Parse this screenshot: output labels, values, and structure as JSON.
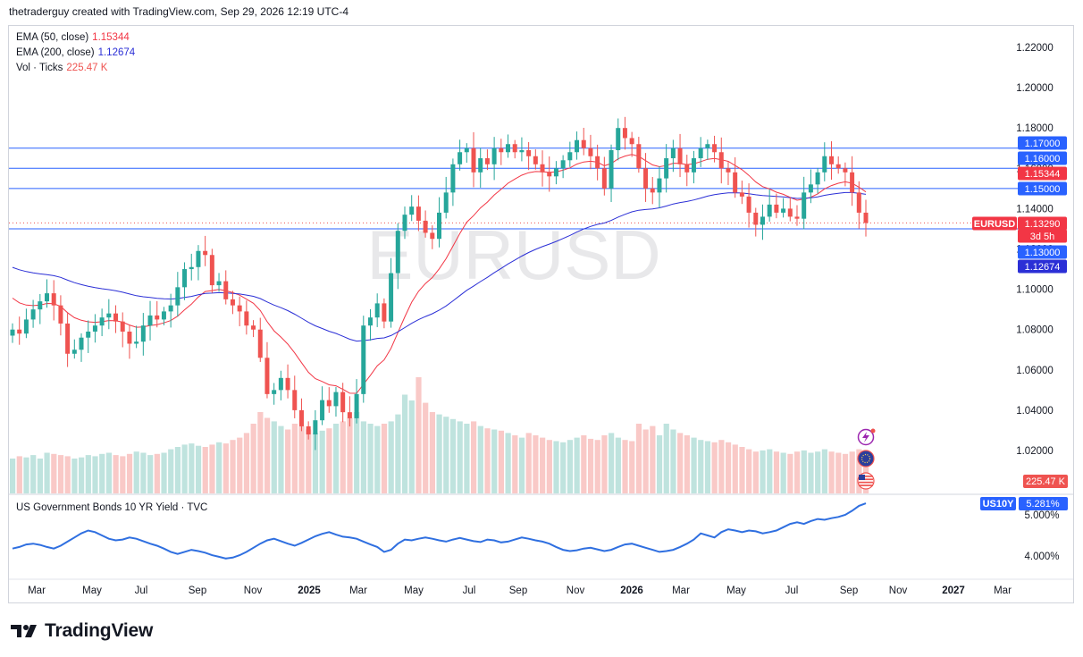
{
  "header": {
    "credit": "thetraderguy created with TradingView.com, Sep 29, 2026 12:19 UTC-4"
  },
  "legend": {
    "ema50_label": "EMA (50, close)",
    "ema50_value": "1.15344",
    "ema200_label": "EMA (200, close)",
    "ema200_value": "1.12674",
    "vol_label": "Vol · Ticks",
    "vol_value": "225.47 K"
  },
  "watermark": "EURUSD",
  "lower_pane": {
    "title": "US Government Bonds 10 YR Yield · TVC"
  },
  "brand": {
    "name": "TradingView"
  },
  "colors": {
    "up": "#26a69a",
    "down": "#ef5350",
    "ema50": "#f23645",
    "ema200": "#2b2fd6",
    "hline": "#2962ff",
    "yield": "#2f6fe0"
  },
  "chart_data": [
    {
      "type": "candlestick",
      "symbol": "EURUSD",
      "timeframe": "weekly",
      "ylim": [
        1.0,
        1.23
      ],
      "y_ticks": [
        "1.02000",
        "1.04000",
        "1.06000",
        "1.08000",
        "1.10000",
        "1.12000",
        "1.14000",
        "1.16000",
        "1.18000",
        "1.20000",
        "1.22000"
      ],
      "x_ticks": [
        "Mar",
        "May",
        "Jul",
        "Sep",
        "Nov",
        "2025",
        "Mar",
        "May",
        "Jul",
        "Sep",
        "Nov",
        "2026",
        "Mar",
        "May",
        "Jul",
        "Sep",
        "Nov",
        "2027",
        "Mar"
      ],
      "horizontal_lines": [
        1.17,
        1.16,
        1.15,
        1.13
      ],
      "price_tags": [
        {
          "text": "1.17000",
          "kind": "line"
        },
        {
          "text": "1.16000",
          "kind": "line"
        },
        {
          "text": "1.15344",
          "kind": "ema50"
        },
        {
          "text": "1.15000",
          "kind": "line"
        },
        {
          "text": "EURUSD",
          "kind": "symbol"
        },
        {
          "text": "1.13290",
          "kind": "last"
        },
        {
          "text": "3d 5h",
          "kind": "countdown"
        },
        {
          "text": "1.13000",
          "kind": "line"
        },
        {
          "text": "1.12674",
          "kind": "ema200"
        }
      ],
      "last_price": 1.1329,
      "closes": [
        1.08,
        1.078,
        1.085,
        1.09,
        1.094,
        1.098,
        1.092,
        1.083,
        1.068,
        1.07,
        1.076,
        1.079,
        1.082,
        1.086,
        1.088,
        1.084,
        1.079,
        1.073,
        1.074,
        1.082,
        1.087,
        1.085,
        1.089,
        1.092,
        1.101,
        1.11,
        1.111,
        1.119,
        1.117,
        1.102,
        1.104,
        1.095,
        1.092,
        1.089,
        1.082,
        1.08,
        1.066,
        1.048,
        1.05,
        1.056,
        1.05,
        1.04,
        1.032,
        1.028,
        1.035,
        1.045,
        1.042,
        1.049,
        1.039,
        1.036,
        1.048,
        1.082,
        1.086,
        1.093,
        1.084,
        1.108,
        1.129,
        1.137,
        1.141,
        1.134,
        1.128,
        1.125,
        1.138,
        1.148,
        1.162,
        1.168,
        1.17,
        1.158,
        1.165,
        1.162,
        1.17,
        1.168,
        1.172,
        1.168,
        1.169,
        1.166,
        1.162,
        1.158,
        1.156,
        1.16,
        1.164,
        1.168,
        1.174,
        1.17,
        1.166,
        1.16,
        1.15,
        1.169,
        1.18,
        1.175,
        1.172,
        1.16,
        1.15,
        1.148,
        1.155,
        1.165,
        1.17,
        1.162,
        1.158,
        1.165,
        1.17,
        1.172,
        1.168,
        1.16,
        1.158,
        1.148,
        1.146,
        1.138,
        1.132,
        1.136,
        1.142,
        1.138,
        1.14,
        1.136,
        1.135,
        1.148,
        1.152,
        1.158,
        1.166,
        1.162,
        1.16,
        1.158,
        1.148,
        1.138,
        1.1329
      ],
      "volumes": [
        0.3,
        0.32,
        0.31,
        0.33,
        0.3,
        0.35,
        0.34,
        0.33,
        0.32,
        0.3,
        0.31,
        0.33,
        0.32,
        0.34,
        0.35,
        0.33,
        0.32,
        0.34,
        0.36,
        0.35,
        0.33,
        0.34,
        0.35,
        0.38,
        0.4,
        0.42,
        0.43,
        0.41,
        0.4,
        0.42,
        0.44,
        0.43,
        0.46,
        0.48,
        0.52,
        0.6,
        0.7,
        0.65,
        0.62,
        0.58,
        0.55,
        0.6,
        0.58,
        0.55,
        0.52,
        0.54,
        0.56,
        0.6,
        0.62,
        0.65,
        0.7,
        0.62,
        0.6,
        0.58,
        0.6,
        0.62,
        0.68,
        0.85,
        0.8,
        1.0,
        0.78,
        0.7,
        0.68,
        0.66,
        0.64,
        0.62,
        0.6,
        0.62,
        0.58,
        0.56,
        0.55,
        0.54,
        0.52,
        0.5,
        0.48,
        0.52,
        0.5,
        0.48,
        0.46,
        0.45,
        0.44,
        0.46,
        0.48,
        0.5,
        0.47,
        0.46,
        0.5,
        0.52,
        0.48,
        0.46,
        0.45,
        0.6,
        0.55,
        0.58,
        0.5,
        0.6,
        0.55,
        0.52,
        0.5,
        0.48,
        0.46,
        0.45,
        0.44,
        0.46,
        0.44,
        0.42,
        0.4,
        0.38,
        0.36,
        0.37,
        0.38,
        0.36,
        0.35,
        0.34,
        0.36,
        0.37,
        0.35,
        0.36,
        0.38,
        0.36,
        0.35,
        0.34,
        0.36,
        0.38,
        0.37
      ],
      "volume_label": "225.47 K"
    },
    {
      "type": "line",
      "symbol": "US10Y",
      "name": "US Government Bonds 10 YR Yield · TVC",
      "y_ticks": [
        "4.000%",
        "5.000%"
      ],
      "last_value": "5.281%",
      "ylim": [
        3.6,
        5.35
      ],
      "values": [
        4.18,
        4.22,
        4.28,
        4.3,
        4.27,
        4.22,
        4.18,
        4.25,
        4.35,
        4.45,
        4.55,
        4.62,
        4.58,
        4.5,
        4.42,
        4.38,
        4.4,
        4.45,
        4.42,
        4.36,
        4.3,
        4.25,
        4.18,
        4.1,
        4.05,
        4.1,
        4.15,
        4.12,
        4.08,
        4.02,
        3.98,
        3.94,
        3.96,
        4.02,
        4.1,
        4.2,
        4.3,
        4.38,
        4.42,
        4.36,
        4.3,
        4.25,
        4.32,
        4.4,
        4.48,
        4.54,
        4.58,
        4.52,
        4.47,
        4.45,
        4.42,
        4.35,
        4.28,
        4.22,
        4.1,
        4.15,
        4.3,
        4.4,
        4.38,
        4.42,
        4.45,
        4.42,
        4.38,
        4.35,
        4.4,
        4.44,
        4.4,
        4.36,
        4.34,
        4.4,
        4.38,
        4.33,
        4.35,
        4.4,
        4.45,
        4.42,
        4.38,
        4.35,
        4.3,
        4.22,
        4.15,
        4.12,
        4.14,
        4.18,
        4.2,
        4.16,
        4.12,
        4.15,
        4.22,
        4.28,
        4.3,
        4.25,
        4.2,
        4.15,
        4.1,
        4.12,
        4.15,
        4.22,
        4.3,
        4.4,
        4.55,
        4.5,
        4.45,
        4.58,
        4.65,
        4.62,
        4.58,
        4.62,
        4.6,
        4.55,
        4.58,
        4.62,
        4.7,
        4.78,
        4.82,
        4.78,
        4.85,
        4.9,
        4.88,
        4.92,
        4.95,
        5.0,
        5.1,
        5.22,
        5.281
      ]
    }
  ]
}
